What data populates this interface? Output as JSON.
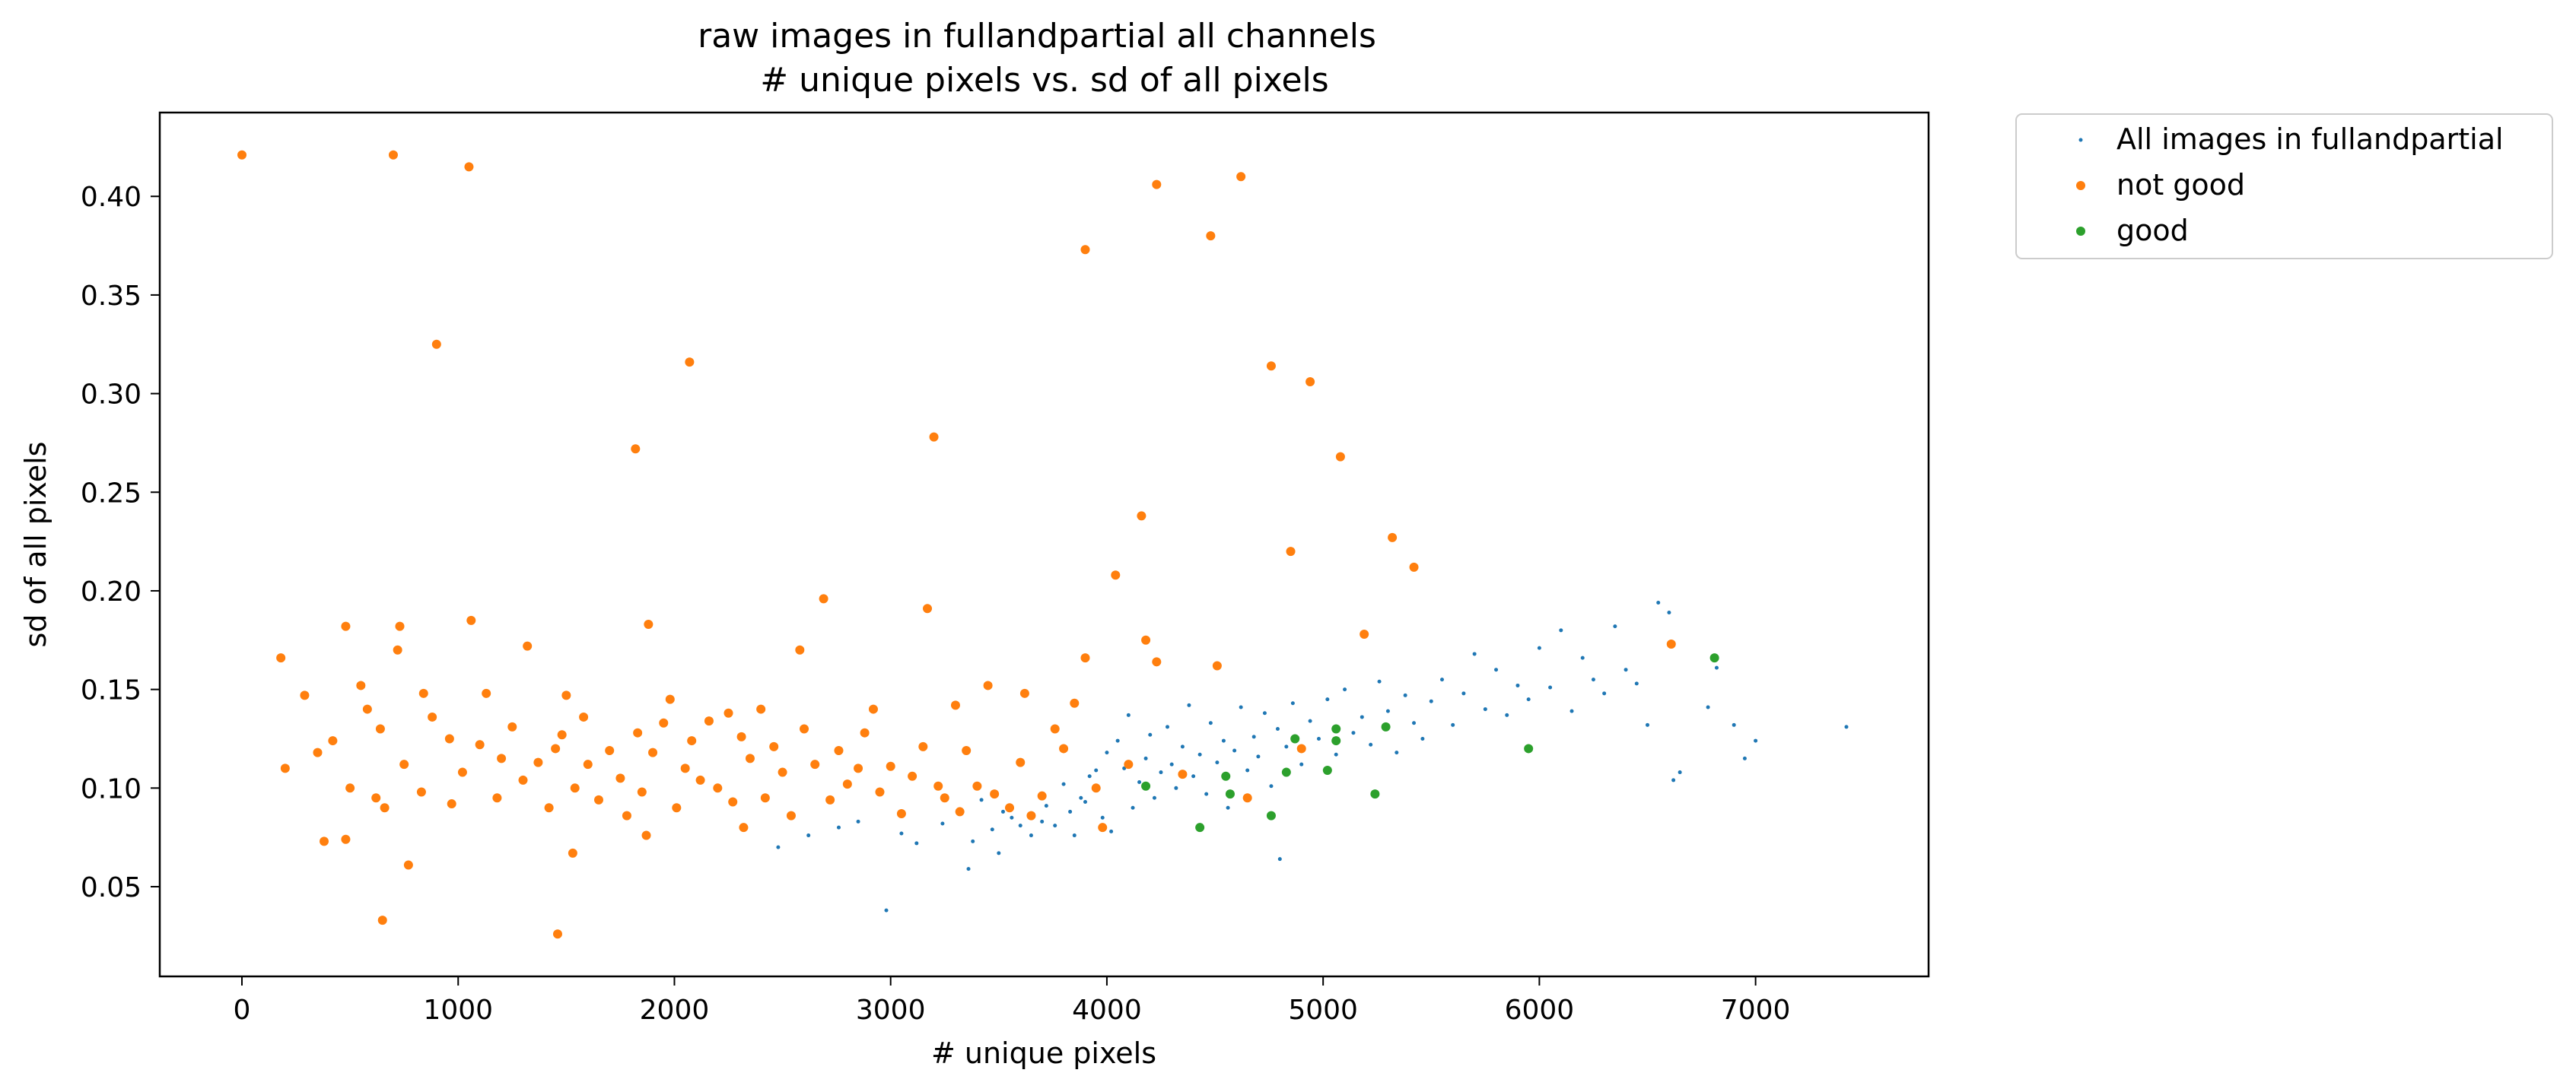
{
  "chart_data": {
    "type": "scatter",
    "title": "raw images in fullandpartial all channels",
    "subtitle": "# unique pixels vs. sd of all pixels",
    "xlabel": "# unique pixels",
    "ylabel": "sd of all pixels",
    "xlim": [
      -380,
      7800
    ],
    "ylim": [
      0.0045,
      0.4425
    ],
    "x_ticks": [
      0,
      1000,
      2000,
      3000,
      4000,
      5000,
      6000,
      7000
    ],
    "y_ticks": [
      0.05,
      0.1,
      0.15,
      0.2,
      0.25,
      0.3,
      0.35,
      0.4
    ],
    "grid": false,
    "legend_position": "outside-top-right",
    "series": [
      {
        "name": "All images in fullandpartial",
        "color": "#1f77b4",
        "marker": "small-dot",
        "points": [
          [
            2480,
            0.07
          ],
          [
            2620,
            0.076
          ],
          [
            2760,
            0.08
          ],
          [
            2850,
            0.083
          ],
          [
            2980,
            0.038
          ],
          [
            3050,
            0.077
          ],
          [
            3120,
            0.072
          ],
          [
            3240,
            0.082
          ],
          [
            3360,
            0.059
          ],
          [
            3380,
            0.073
          ],
          [
            3420,
            0.094
          ],
          [
            3470,
            0.079
          ],
          [
            3500,
            0.067
          ],
          [
            3520,
            0.088
          ],
          [
            3560,
            0.085
          ],
          [
            3600,
            0.081
          ],
          [
            3650,
            0.076
          ],
          [
            3700,
            0.083
          ],
          [
            3720,
            0.091
          ],
          [
            3760,
            0.081
          ],
          [
            3800,
            0.102
          ],
          [
            3830,
            0.088
          ],
          [
            3850,
            0.076
          ],
          [
            3880,
            0.095
          ],
          [
            3900,
            0.093
          ],
          [
            3920,
            0.106
          ],
          [
            3950,
            0.109
          ],
          [
            3980,
            0.085
          ],
          [
            4000,
            0.118
          ],
          [
            4020,
            0.078
          ],
          [
            4050,
            0.124
          ],
          [
            4080,
            0.11
          ],
          [
            4100,
            0.137
          ],
          [
            4120,
            0.09
          ],
          [
            4150,
            0.103
          ],
          [
            4180,
            0.115
          ],
          [
            4200,
            0.127
          ],
          [
            4220,
            0.095
          ],
          [
            4250,
            0.108
          ],
          [
            4280,
            0.131
          ],
          [
            4300,
            0.112
          ],
          [
            4320,
            0.1
          ],
          [
            4350,
            0.121
          ],
          [
            4380,
            0.142
          ],
          [
            4400,
            0.106
          ],
          [
            4430,
            0.117
          ],
          [
            4460,
            0.097
          ],
          [
            4480,
            0.133
          ],
          [
            4510,
            0.113
          ],
          [
            4540,
            0.124
          ],
          [
            4560,
            0.09
          ],
          [
            4590,
            0.119
          ],
          [
            4620,
            0.141
          ],
          [
            4650,
            0.109
          ],
          [
            4680,
            0.126
          ],
          [
            4700,
            0.116
          ],
          [
            4730,
            0.138
          ],
          [
            4760,
            0.101
          ],
          [
            4790,
            0.13
          ],
          [
            4800,
            0.064
          ],
          [
            4830,
            0.121
          ],
          [
            4860,
            0.143
          ],
          [
            4900,
            0.112
          ],
          [
            4940,
            0.134
          ],
          [
            4980,
            0.125
          ],
          [
            5020,
            0.145
          ],
          [
            5060,
            0.117
          ],
          [
            5100,
            0.15
          ],
          [
            5140,
            0.128
          ],
          [
            5180,
            0.136
          ],
          [
            5220,
            0.122
          ],
          [
            5260,
            0.154
          ],
          [
            5300,
            0.139
          ],
          [
            5340,
            0.118
          ],
          [
            5380,
            0.147
          ],
          [
            5420,
            0.133
          ],
          [
            5460,
            0.125
          ],
          [
            5500,
            0.144
          ],
          [
            5550,
            0.155
          ],
          [
            5600,
            0.132
          ],
          [
            5650,
            0.148
          ],
          [
            5700,
            0.168
          ],
          [
            5750,
            0.14
          ],
          [
            5800,
            0.16
          ],
          [
            5850,
            0.137
          ],
          [
            5900,
            0.152
          ],
          [
            5950,
            0.145
          ],
          [
            6000,
            0.171
          ],
          [
            6050,
            0.151
          ],
          [
            6100,
            0.18
          ],
          [
            6150,
            0.139
          ],
          [
            6200,
            0.166
          ],
          [
            6250,
            0.155
          ],
          [
            6300,
            0.148
          ],
          [
            6350,
            0.182
          ],
          [
            6400,
            0.16
          ],
          [
            6450,
            0.153
          ],
          [
            6500,
            0.132
          ],
          [
            6550,
            0.194
          ],
          [
            6600,
            0.189
          ],
          [
            6620,
            0.104
          ],
          [
            6650,
            0.108
          ],
          [
            6780,
            0.141
          ],
          [
            6820,
            0.161
          ],
          [
            6900,
            0.132
          ],
          [
            6950,
            0.115
          ],
          [
            7000,
            0.124
          ],
          [
            7420,
            0.131
          ]
        ]
      },
      {
        "name": "not good",
        "color": "#ff7f0e",
        "marker": "dot",
        "points": [
          [
            0,
            0.421
          ],
          [
            700,
            0.421
          ],
          [
            1050,
            0.415
          ],
          [
            900,
            0.325
          ],
          [
            2070,
            0.316
          ],
          [
            1820,
            0.272
          ],
          [
            3200,
            0.278
          ],
          [
            4230,
            0.406
          ],
          [
            4620,
            0.41
          ],
          [
            3900,
            0.373
          ],
          [
            4480,
            0.38
          ],
          [
            4760,
            0.314
          ],
          [
            4940,
            0.306
          ],
          [
            5080,
            0.268
          ],
          [
            4160,
            0.238
          ],
          [
            5320,
            0.227
          ],
          [
            4850,
            0.22
          ],
          [
            5420,
            0.212
          ],
          [
            4040,
            0.208
          ],
          [
            2690,
            0.196
          ],
          [
            3170,
            0.191
          ],
          [
            5190,
            0.178
          ],
          [
            4180,
            0.175
          ],
          [
            4230,
            0.164
          ],
          [
            4510,
            0.162
          ],
          [
            6610,
            0.173
          ],
          [
            1060,
            0.185
          ],
          [
            480,
            0.182
          ],
          [
            730,
            0.182
          ],
          [
            1880,
            0.183
          ],
          [
            1320,
            0.172
          ],
          [
            2580,
            0.17
          ],
          [
            720,
            0.17
          ],
          [
            180,
            0.166
          ],
          [
            3900,
            0.166
          ],
          [
            290,
            0.147
          ],
          [
            550,
            0.152
          ],
          [
            840,
            0.148
          ],
          [
            1980,
            0.145
          ],
          [
            2250,
            0.138
          ],
          [
            1130,
            0.148
          ],
          [
            1500,
            0.147
          ],
          [
            2400,
            0.14
          ],
          [
            2920,
            0.14
          ],
          [
            3300,
            0.142
          ],
          [
            3450,
            0.152
          ],
          [
            3620,
            0.148
          ],
          [
            3760,
            0.13
          ],
          [
            3850,
            0.143
          ],
          [
            640,
            0.13
          ],
          [
            960,
            0.125
          ],
          [
            1200,
            0.115
          ],
          [
            1450,
            0.12
          ],
          [
            1600,
            0.112
          ],
          [
            1750,
            0.105
          ],
          [
            1900,
            0.118
          ],
          [
            2050,
            0.11
          ],
          [
            2200,
            0.1
          ],
          [
            2350,
            0.115
          ],
          [
            2500,
            0.108
          ],
          [
            2650,
            0.112
          ],
          [
            2800,
            0.102
          ],
          [
            2950,
            0.098
          ],
          [
            3100,
            0.106
          ],
          [
            3250,
            0.095
          ],
          [
            3400,
            0.101
          ],
          [
            3550,
            0.09
          ],
          [
            3700,
            0.096
          ],
          [
            200,
            0.11
          ],
          [
            350,
            0.118
          ],
          [
            420,
            0.124
          ],
          [
            500,
            0.1
          ],
          [
            580,
            0.14
          ],
          [
            660,
            0.09
          ],
          [
            750,
            0.112
          ],
          [
            830,
            0.098
          ],
          [
            880,
            0.136
          ],
          [
            970,
            0.092
          ],
          [
            1020,
            0.108
          ],
          [
            1100,
            0.122
          ],
          [
            1180,
            0.095
          ],
          [
            1250,
            0.131
          ],
          [
            1300,
            0.104
          ],
          [
            1370,
            0.113
          ],
          [
            1420,
            0.09
          ],
          [
            1480,
            0.127
          ],
          [
            1540,
            0.1
          ],
          [
            1580,
            0.136
          ],
          [
            1650,
            0.094
          ],
          [
            1700,
            0.119
          ],
          [
            1780,
            0.086
          ],
          [
            1830,
            0.128
          ],
          [
            1850,
            0.098
          ],
          [
            1950,
            0.133
          ],
          [
            2010,
            0.09
          ],
          [
            2080,
            0.124
          ],
          [
            2120,
            0.104
          ],
          [
            2160,
            0.134
          ],
          [
            2270,
            0.093
          ],
          [
            2310,
            0.126
          ],
          [
            2420,
            0.095
          ],
          [
            2460,
            0.121
          ],
          [
            2540,
            0.086
          ],
          [
            2600,
            0.13
          ],
          [
            2720,
            0.094
          ],
          [
            2760,
            0.119
          ],
          [
            2850,
            0.11
          ],
          [
            2880,
            0.128
          ],
          [
            3000,
            0.111
          ],
          [
            3050,
            0.087
          ],
          [
            3150,
            0.121
          ],
          [
            3220,
            0.101
          ],
          [
            3350,
            0.119
          ],
          [
            3480,
            0.097
          ],
          [
            3600,
            0.113
          ],
          [
            3650,
            0.086
          ],
          [
            3800,
            0.12
          ],
          [
            3950,
            0.1
          ],
          [
            4100,
            0.112
          ],
          [
            4350,
            0.107
          ],
          [
            4650,
            0.095
          ],
          [
            4900,
            0.12
          ],
          [
            380,
            0.073
          ],
          [
            480,
            0.074
          ],
          [
            620,
            0.095
          ],
          [
            650,
            0.033
          ],
          [
            770,
            0.061
          ],
          [
            1460,
            0.026
          ],
          [
            1530,
            0.067
          ],
          [
            1870,
            0.076
          ],
          [
            2320,
            0.08
          ],
          [
            3320,
            0.088
          ],
          [
            3980,
            0.08
          ]
        ]
      },
      {
        "name": "good",
        "color": "#2ca02c",
        "marker": "dot",
        "points": [
          [
            4180,
            0.101
          ],
          [
            4430,
            0.08
          ],
          [
            4550,
            0.106
          ],
          [
            4570,
            0.097
          ],
          [
            4760,
            0.086
          ],
          [
            4830,
            0.108
          ],
          [
            4870,
            0.125
          ],
          [
            5020,
            0.109
          ],
          [
            5060,
            0.13
          ],
          [
            5060,
            0.124
          ],
          [
            5240,
            0.097
          ],
          [
            5290,
            0.131
          ],
          [
            5950,
            0.12
          ],
          [
            6810,
            0.166
          ]
        ]
      }
    ]
  }
}
